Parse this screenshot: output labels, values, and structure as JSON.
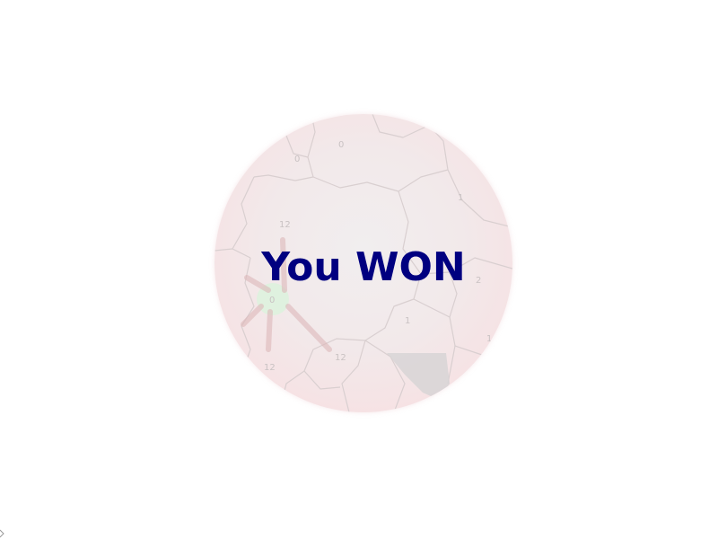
{
  "result": {
    "message": "You WON"
  },
  "map": {
    "region_labels": [
      "0",
      "0",
      "1",
      "12",
      "2",
      "0",
      "12",
      "12",
      "1",
      "1"
    ]
  },
  "colors": {
    "message": "#000080",
    "map_tint": "#f6dcdf",
    "player_region": "#dff3df",
    "borders": "#d7cfd0"
  }
}
